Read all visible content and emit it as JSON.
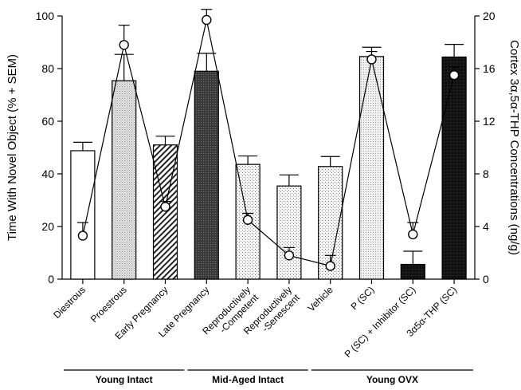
{
  "chart_data": {
    "type": "bar",
    "categories": [
      "Diestrous",
      "Proestrous",
      "Early Pregnancy",
      "Late Pregnancy",
      "Reproductively -Competent",
      "Reproductively -Senescent",
      "Vehicle",
      "P (SC)",
      "P (SC) + Inhibitor (SC)",
      "3α5α-THP (SC)"
    ],
    "category_lines": [
      [
        "Diestrous"
      ],
      [
        "Proestrous"
      ],
      [
        "Early Pregnancy"
      ],
      [
        "Late Pregnancy"
      ],
      [
        "Reproductively",
        "-Competent"
      ],
      [
        "Reproductively",
        "-Senescent"
      ],
      [
        "Vehicle"
      ],
      [
        "P (SC)"
      ],
      [
        "P (SC) + Inhibitor (SC)"
      ],
      [
        "3α5α-THP (SC)"
      ]
    ],
    "series": [
      {
        "axis": "left",
        "mark": "bar",
        "values": [
          48.8,
          75.4,
          51.0,
          79.0,
          43.6,
          35.4,
          42.8,
          84.6,
          5.6,
          84.4
        ],
        "errors": [
          3.2,
          10.0,
          3.3,
          6.8,
          3.2,
          4.2,
          3.8,
          3.5,
          5.0,
          4.8
        ]
      },
      {
        "axis": "right",
        "mark": "line",
        "values": [
          3.3,
          17.8,
          5.5,
          19.7,
          4.5,
          1.8,
          1.0,
          16.7,
          3.4,
          15.5
        ],
        "errors": [
          1.0,
          1.5,
          0.4,
          0.8,
          0.5,
          0.6,
          0.8,
          0.6,
          0.9,
          0.6
        ]
      }
    ],
    "bar_fills": [
      "white",
      "grid",
      "hatch",
      "dark",
      "dots",
      "dots",
      "dots",
      "dots-light",
      "black",
      "black"
    ],
    "ylabel": "Time With Novel Object (% + SEM)",
    "ylim": [
      0,
      100
    ],
    "yticks": [
      0,
      20,
      40,
      60,
      80,
      100
    ],
    "y2label": "Cortex 3α,5α-THP Concentrations (ng/g)",
    "y2lim": [
      0,
      20
    ],
    "y2ticks": [
      0,
      4,
      8,
      12,
      16,
      20
    ],
    "groups": [
      {
        "label": "Young Intact",
        "categories": [
          0,
          1,
          2
        ]
      },
      {
        "label": "Mid-Aged Intact",
        "categories": [
          3,
          4,
          5
        ]
      },
      {
        "label": "Young OVX",
        "categories": [
          6,
          7,
          8,
          9
        ]
      }
    ],
    "grid": false,
    "legend": "none"
  }
}
